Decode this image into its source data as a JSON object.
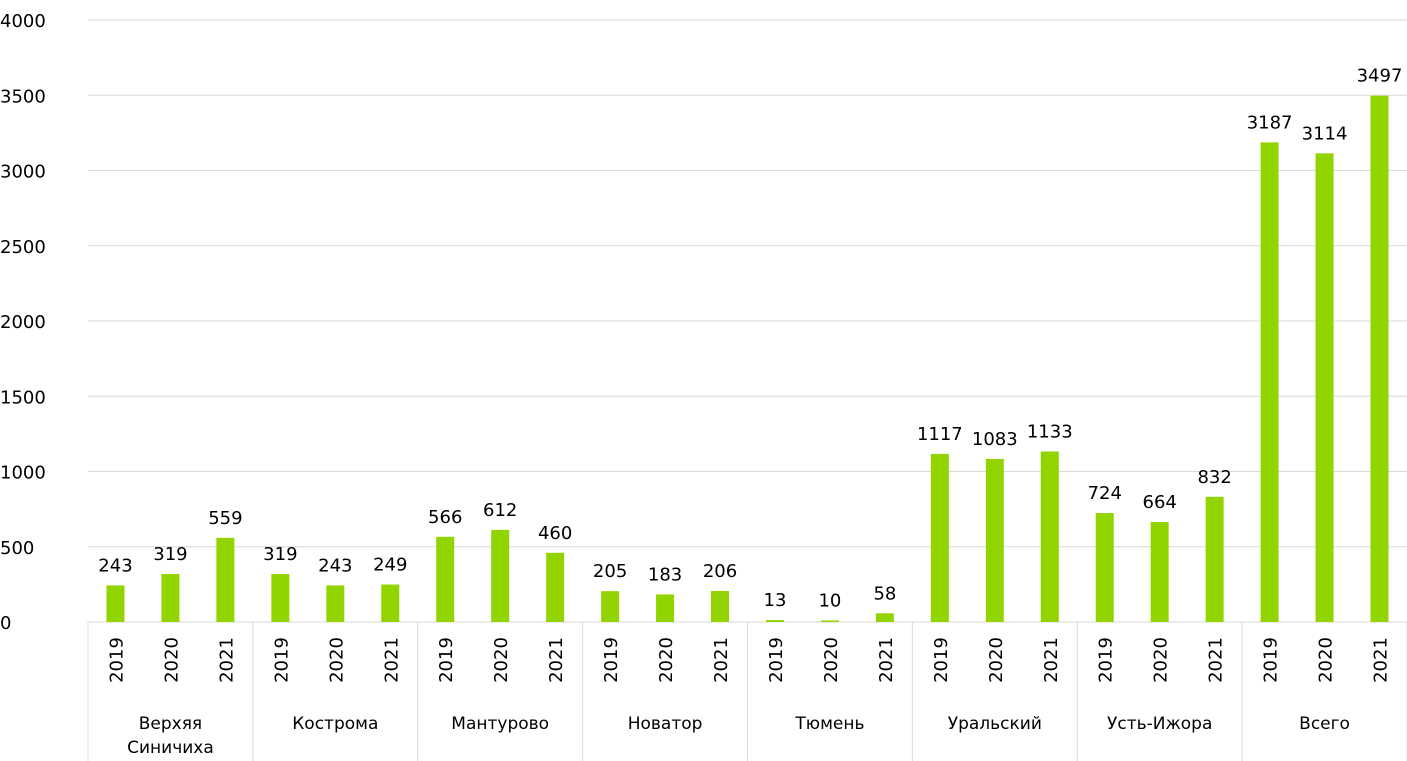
{
  "chart_data": {
    "type": "bar",
    "color": "#92d400",
    "grid": true,
    "ylim": [
      0,
      4000
    ],
    "yticks": [
      0,
      500,
      1000,
      1500,
      2000,
      2500,
      3000,
      3500,
      4000
    ],
    "groups": [
      "Верхяя Синичиха",
      "Кострома",
      "Мантурово",
      "Новатор",
      "Тюмень",
      "Уральский",
      "Усть-Ижора",
      "Всего"
    ],
    "categories": [
      "2019",
      "2020",
      "2021",
      "2019",
      "2020",
      "2021",
      "2019",
      "2020",
      "2021",
      "2019",
      "2020",
      "2021",
      "2019",
      "2020",
      "2021",
      "2019",
      "2020",
      "2021",
      "2019",
      "2020",
      "2021",
      "2019",
      "2020",
      "2021"
    ],
    "values": [
      243,
      319,
      559,
      319,
      243,
      249,
      566,
      612,
      460,
      205,
      183,
      206,
      13,
      10,
      58,
      1117,
      1083,
      1133,
      724,
      664,
      832,
      3187,
      3114,
      3497
    ]
  }
}
